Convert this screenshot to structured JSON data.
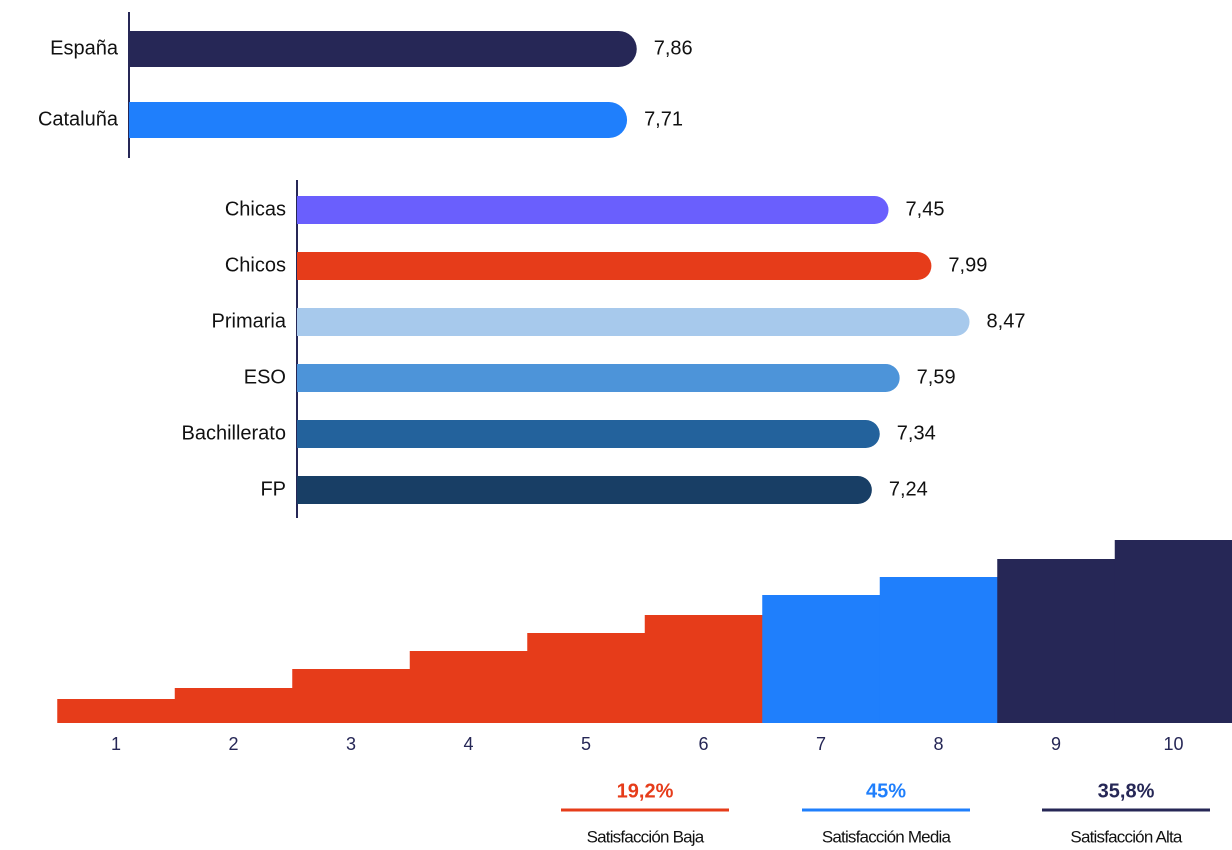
{
  "chart_data": [
    {
      "type": "hbar",
      "categories": [
        "España",
        "Cataluña"
      ],
      "values": [
        7.86,
        7.71
      ],
      "value_labels": [
        "7,86",
        "7,71"
      ],
      "colors": [
        "#262756",
        "#1f7ffc"
      ],
      "xlim": [
        0,
        10
      ]
    },
    {
      "type": "hbar",
      "categories": [
        "Chicas",
        "Chicos",
        "Primaria",
        "ESO",
        "Bachillerato",
        "FP"
      ],
      "values": [
        7.45,
        7.99,
        8.47,
        7.59,
        7.34,
        7.24
      ],
      "value_labels": [
        "7,45",
        "7,99",
        "8,47",
        "7,59",
        "7,34",
        "7,24"
      ],
      "colors": [
        "#6a5ffd",
        "#e63c1a",
        "#a7c9ec",
        "#4d94d9",
        "#23629c",
        "#183e65"
      ],
      "xlim": [
        0,
        10
      ]
    },
    {
      "type": "step",
      "categories": [
        "1",
        "2",
        "3",
        "4",
        "5",
        "6",
        "7",
        "8",
        "9",
        "10"
      ],
      "values": [
        24,
        35,
        54,
        72,
        90,
        108,
        128,
        146,
        164,
        183
      ],
      "colors": [
        "#e63c1a",
        "#e63c1a",
        "#e63c1a",
        "#e63c1a",
        "#e63c1a",
        "#e63c1a",
        "#1f7ffc",
        "#1f7ffc",
        "#262756",
        "#262756"
      ],
      "ylim": [
        0,
        200
      ],
      "groups": [
        {
          "name": "Satisfacción Baja",
          "value": 19.2,
          "label": "19,2%",
          "color": "#e63c1a"
        },
        {
          "name": "Satisfacción Media",
          "value": 45,
          "label": "45%",
          "color": "#1f7ffc"
        },
        {
          "name": "Satisfacción Alta",
          "value": 35.8,
          "label": "35,8%",
          "color": "#262756"
        }
      ]
    }
  ]
}
